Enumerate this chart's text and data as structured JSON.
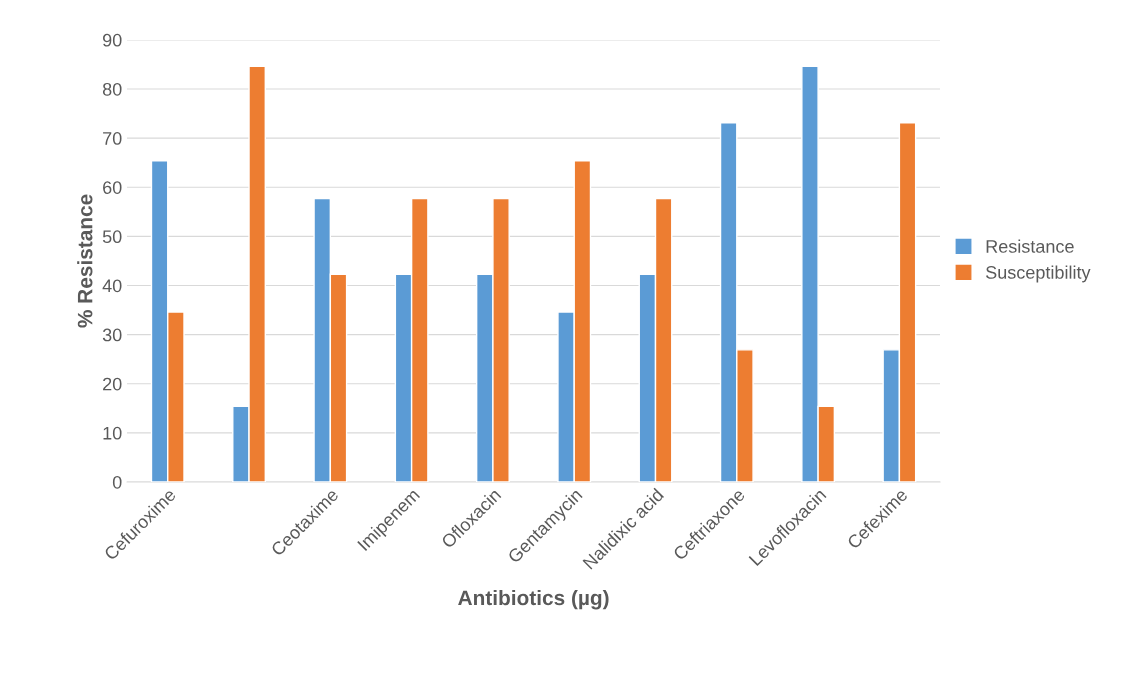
{
  "chart_data": {
    "type": "bar",
    "xlabel": "Antibiotics (µg)",
    "ylabel": "% Resistance",
    "categories": [
      "Cefuroxime",
      null,
      "Ceotaxime",
      "Imipenem",
      "Ofloxacin",
      "Gentamycin",
      "Nalidixic acid",
      "Ceftriaxone",
      "Levofloxacin",
      "Cefexime"
    ],
    "series": [
      {
        "name": "Resistance",
        "color": "#5b9bd5",
        "values": [
          65.4,
          15.4,
          57.7,
          42.3,
          42.3,
          34.6,
          42.3,
          73.1,
          84.6,
          26.9
        ]
      },
      {
        "name": "Susceptibility",
        "color": "#ed7d31",
        "values": [
          34.6,
          84.6,
          42.3,
          57.7,
          57.7,
          65.4,
          57.7,
          26.9,
          15.4,
          73.1
        ]
      }
    ],
    "ylim": [
      0,
      90
    ],
    "yticks": [
      0,
      10,
      20,
      30,
      40,
      50,
      60,
      70,
      80,
      90
    ],
    "grid": "y",
    "legend": "right"
  }
}
